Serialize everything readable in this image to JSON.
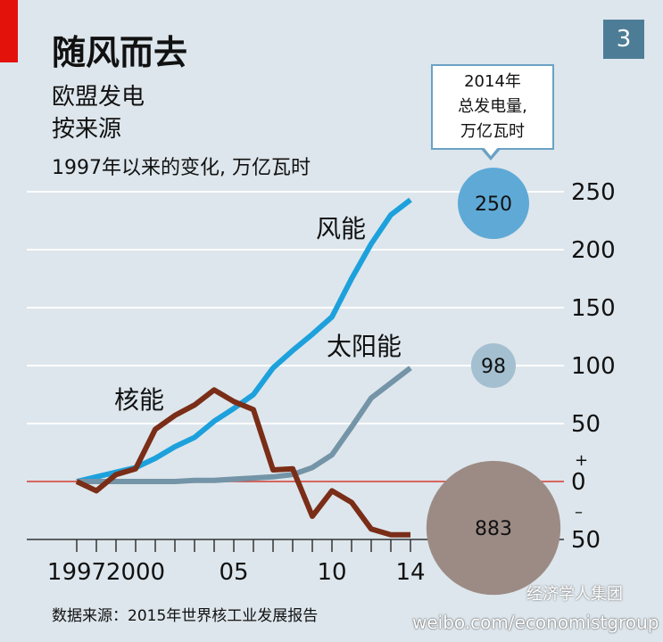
{
  "header": {
    "title": "随风而去",
    "subtitle_line1": "欧盟发电",
    "subtitle_line2": "按来源",
    "unit_note": "1997年以来的变化, 万亿瓦时",
    "page_badge": "3"
  },
  "callout": {
    "line1": "2014年",
    "line2": "总发电量,",
    "line3": "万亿瓦时"
  },
  "footer": {
    "source": "数据来源：2015年世界核工业发展报告",
    "watermark_url": "weibo.com/economistgroup",
    "watermark_logo": "经济学人集团"
  },
  "colors": {
    "accent_red": "#e3120b",
    "wind": "#1da1dc",
    "solar": "#7494a7",
    "nuclear": "#7a2d17",
    "badge": "#4d7d96",
    "bubble_wind": "#5fa9d6",
    "bubble_solar": "#a4bfd0",
    "bubble_nuclear": "#9c8b85"
  },
  "chart_data": {
    "type": "line",
    "title": "随风而去",
    "ylabel": "1997年以来的变化, 万亿瓦时",
    "x": [
      1997,
      1998,
      1999,
      2000,
      2001,
      2002,
      2003,
      2004,
      2005,
      2006,
      2007,
      2008,
      2009,
      2010,
      2011,
      2012,
      2013,
      2014
    ],
    "series": [
      {
        "name": "风能",
        "color": "#1da1dc",
        "values": [
          0,
          4,
          8,
          12,
          20,
          30,
          38,
          52,
          63,
          75,
          98,
          113,
          127,
          142,
          175,
          205,
          230,
          243
        ]
      },
      {
        "name": "太阳能",
        "color": "#7494a7",
        "values": [
          0,
          0,
          0,
          0,
          0,
          0,
          1,
          1,
          2,
          3,
          4,
          6,
          12,
          23,
          47,
          72,
          85,
          98
        ]
      },
      {
        "name": "核能",
        "color": "#7a2d17",
        "values": [
          0,
          -8,
          6,
          11,
          45,
          57,
          66,
          79,
          69,
          62,
          10,
          11,
          -30,
          -8,
          -18,
          -41,
          -46,
          -46
        ]
      }
    ],
    "series_labels": [
      "风能",
      "太阳能",
      "核能"
    ],
    "x_ticks": [
      1997,
      1998,
      1999,
      2000,
      2001,
      2002,
      2003,
      2004,
      2005,
      2006,
      2007,
      2008,
      2009,
      2010,
      2011,
      2012,
      2013,
      2014
    ],
    "x_tick_labels": [
      {
        "x": 1997,
        "label": "1997"
      },
      {
        "x": 2000,
        "label": "2000"
      },
      {
        "x": 2005,
        "label": "05"
      },
      {
        "x": 2010,
        "label": "10"
      },
      {
        "x": 2014,
        "label": "14"
      }
    ],
    "y_ticks": [
      250,
      200,
      150,
      100,
      50,
      0,
      -50
    ],
    "y_tick_labels": [
      "250",
      "200",
      "150",
      "100",
      "50",
      "0",
      "50"
    ],
    "sign_plus": "+",
    "sign_minus": "–",
    "ylim": [
      -50,
      250
    ],
    "bubbles": [
      {
        "name": "风能",
        "value": 250,
        "label": "250",
        "color": "#5fa9d6",
        "y": 240
      },
      {
        "name": "太阳能",
        "value": 98,
        "label": "98",
        "color": "#a4bfd0",
        "y": 100
      },
      {
        "name": "核能",
        "value": 883,
        "label": "883",
        "color": "#9c8b85",
        "y": -40
      }
    ]
  }
}
